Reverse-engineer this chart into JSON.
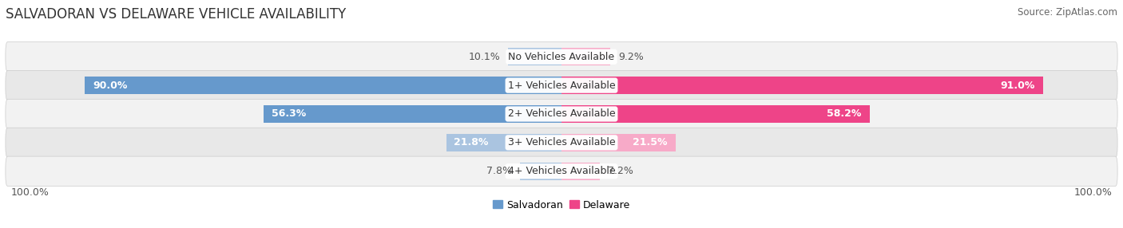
{
  "title": "SALVADORAN VS DELAWARE VEHICLE AVAILABILITY",
  "source": "Source: ZipAtlas.com",
  "categories": [
    "No Vehicles Available",
    "1+ Vehicles Available",
    "2+ Vehicles Available",
    "3+ Vehicles Available",
    "4+ Vehicles Available"
  ],
  "salvadoran_values": [
    10.1,
    90.0,
    56.3,
    21.8,
    7.8
  ],
  "delaware_values": [
    9.2,
    91.0,
    58.2,
    21.5,
    7.2
  ],
  "salvadoran_color_strong": "#6699cc",
  "salvadoran_color_light": "#aac4e0",
  "delaware_color_strong": "#ee4488",
  "delaware_color_light": "#f7aac8",
  "row_bg_odd": "#f2f2f2",
  "row_bg_even": "#e8e8e8",
  "max_value": 100.0,
  "bar_height": 0.62,
  "title_fontsize": 12,
  "label_fontsize": 9,
  "value_fontsize": 9,
  "legend_fontsize": 9,
  "source_fontsize": 8.5,
  "bottom_label": "100.0%"
}
